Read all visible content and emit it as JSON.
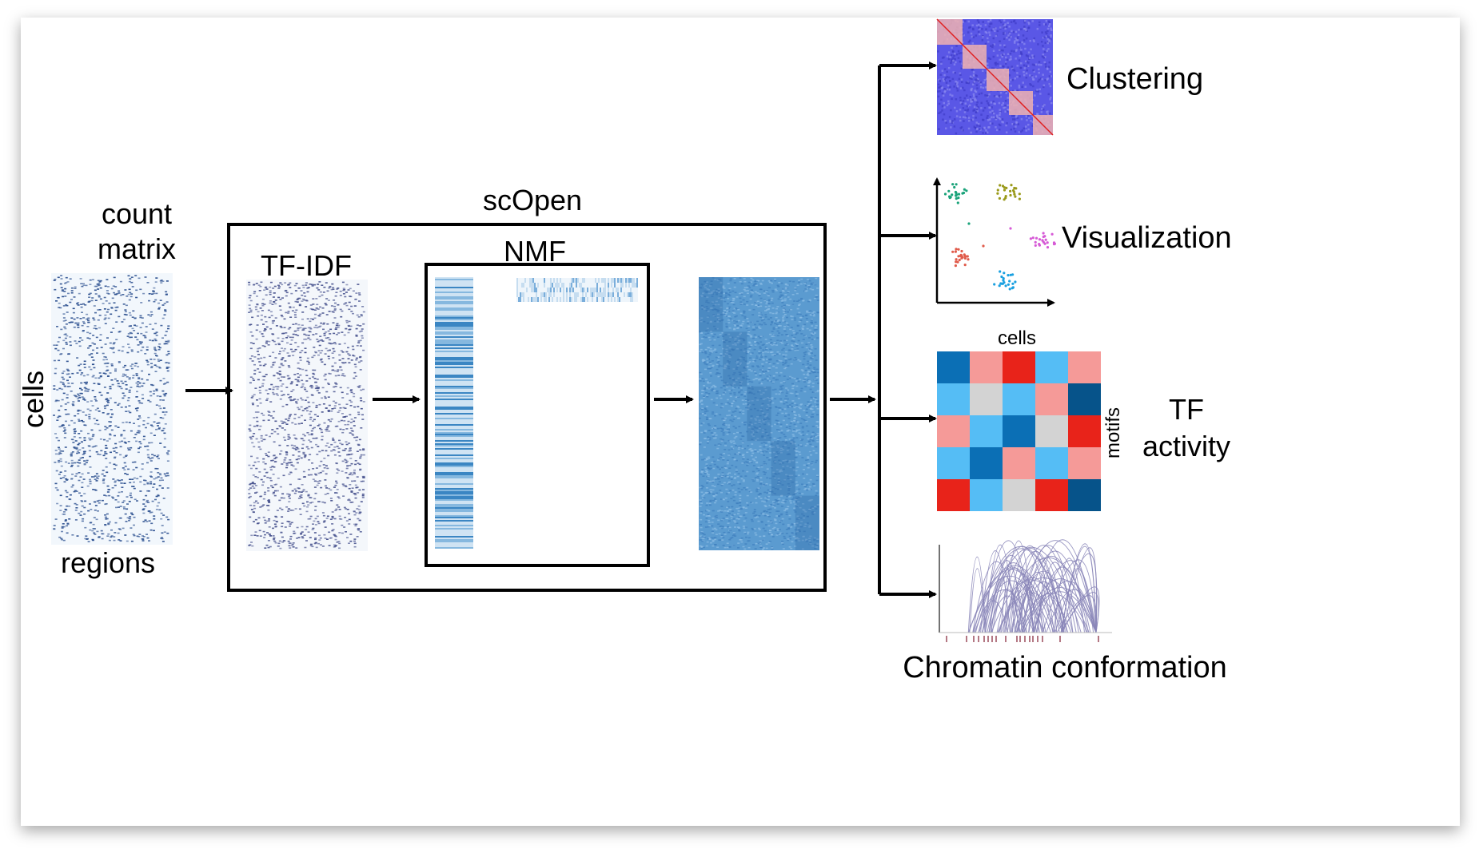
{
  "labels": {
    "count_matrix_line1": "count",
    "count_matrix_line2": "matrix",
    "cells_side": "cells",
    "regions": "regions",
    "scopen": "scOpen",
    "tfidf": "TF-IDF",
    "nmf": "NMF",
    "clustering": "Clustering",
    "visualization": "Visualization",
    "tf_activity_line1": "TF",
    "tf_activity_line2": "activity",
    "heatmap_cells": "cells",
    "heatmap_motifs": "motifs",
    "chromatin_conformation": "Chromatin conformation"
  },
  "colors": {
    "sparse_dot": "#2b4f8f",
    "matrix_bg": "#f2f7fc",
    "blue_heatmap": "#4a90c8",
    "clustering_bg": "#5a57e6",
    "clustering_block": "#f0b2b0",
    "clustering_diagonal": "#e02020",
    "arc": "#8a86b8",
    "tick": "#9b4a5a"
  },
  "tf_activity_grid": [
    [
      "#0b6fb5",
      "#f59a98",
      "#e8231a",
      "#55bdf5",
      "#f59a98"
    ],
    [
      "#55bdf5",
      "#d3d3d3",
      "#55bdf5",
      "#f59a98",
      "#06538a"
    ],
    [
      "#f59a98",
      "#55bdf5",
      "#0b6fb5",
      "#d3d3d3",
      "#e8231a"
    ],
    [
      "#55bdf5",
      "#0b6fb5",
      "#f59a98",
      "#55bdf5",
      "#f59a98"
    ],
    [
      "#e8231a",
      "#55bdf5",
      "#d3d3d3",
      "#e8231a",
      "#06538a"
    ]
  ],
  "scatter_clusters": [
    {
      "color": "#1aa37a"
    },
    {
      "color": "#9a9a1a"
    },
    {
      "color": "#e05a4a"
    },
    {
      "color": "#d65ad6"
    },
    {
      "color": "#1aa0e0"
    }
  ]
}
